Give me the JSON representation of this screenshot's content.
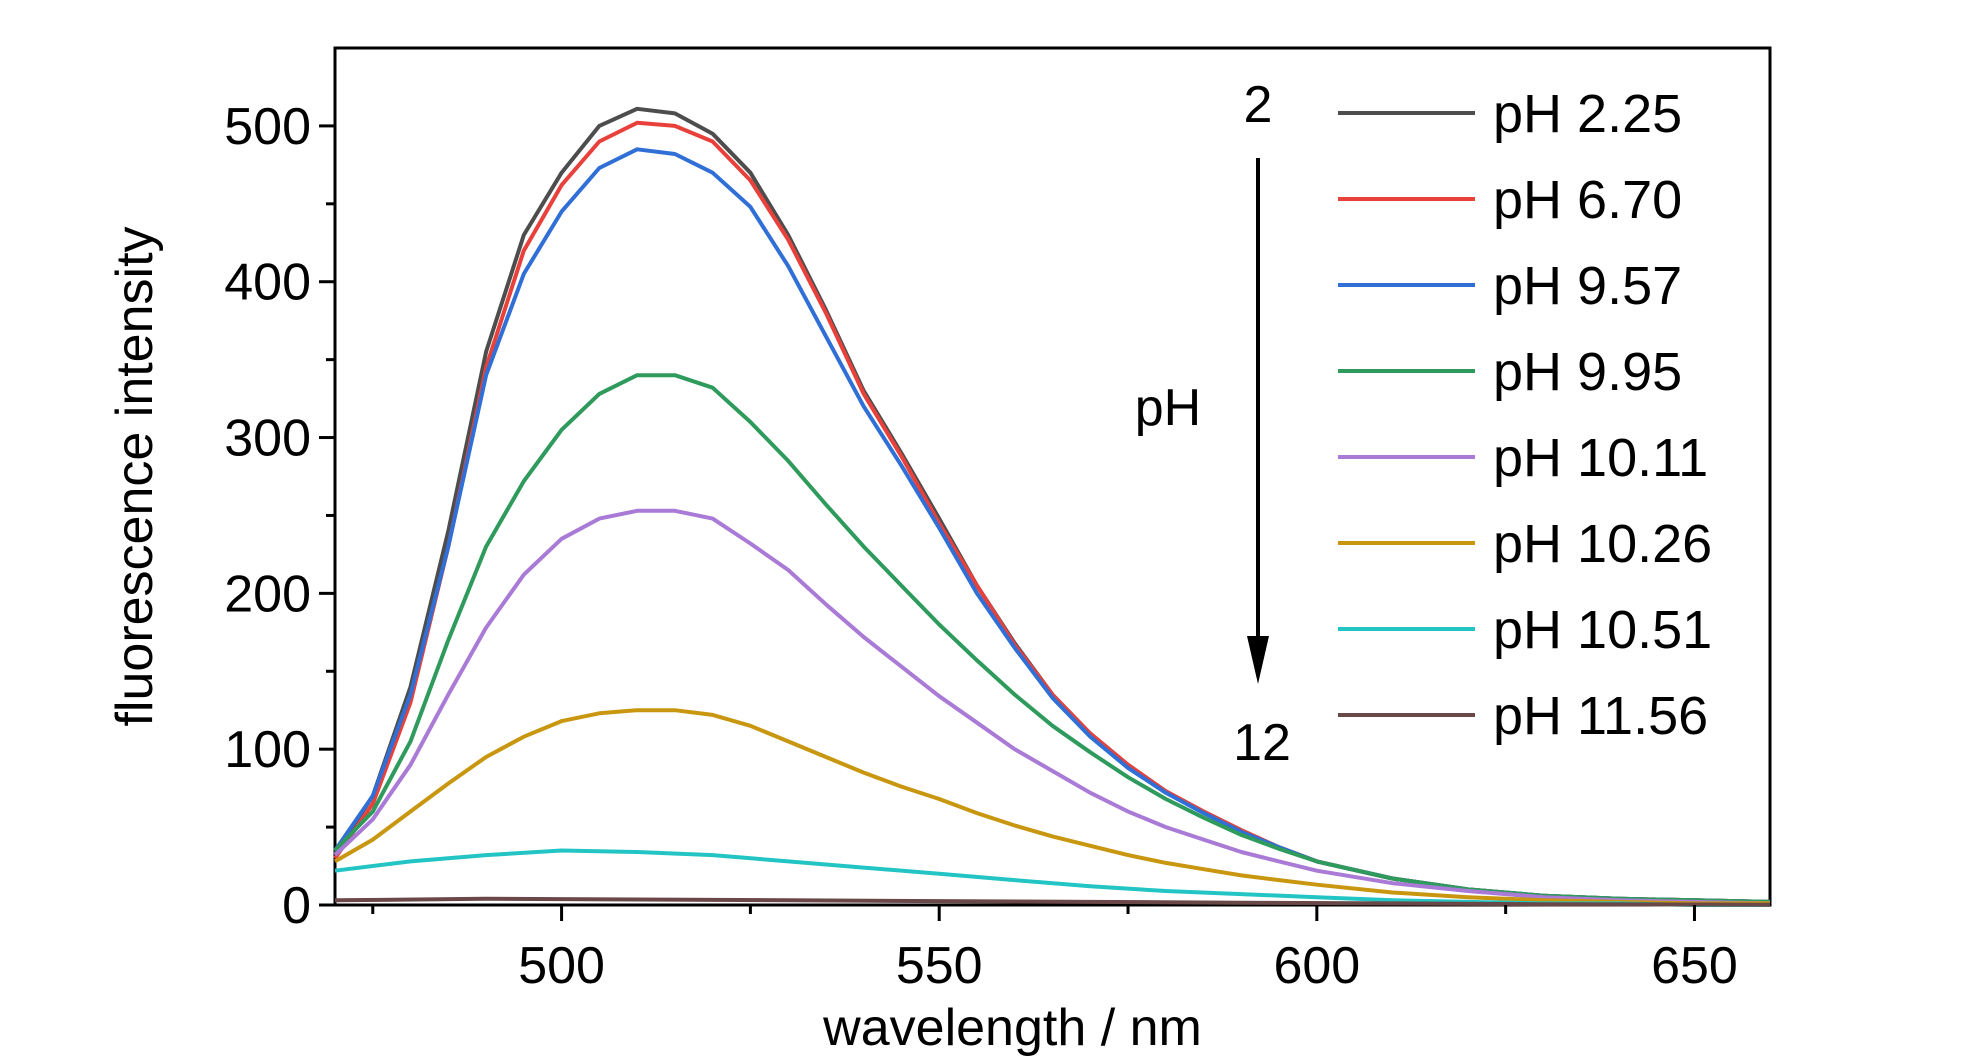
{
  "chart_data": {
    "type": "line",
    "title": "",
    "xlabel": "wavelength / nm",
    "ylabel": "fluorescence intensity",
    "xlim": [
      470,
      660
    ],
    "ylim": [
      0,
      550
    ],
    "xticks": [
      500,
      550,
      600,
      650
    ],
    "yticks": [
      0,
      100,
      200,
      300,
      400,
      500
    ],
    "x_tick_labels": [
      "500",
      "550",
      "600",
      "650"
    ],
    "y_tick_labels": [
      "0",
      "100",
      "200",
      "300",
      "400",
      "500"
    ],
    "grid": false,
    "legend_position": "top-right",
    "annotations": {
      "start": "2",
      "label": "pH",
      "end": "12"
    },
    "series": [
      {
        "name": "pH 2.25",
        "color": "#4d4d4d",
        "points": [
          [
            470,
            33
          ],
          [
            475,
            70
          ],
          [
            480,
            140
          ],
          [
            485,
            240
          ],
          [
            490,
            355
          ],
          [
            495,
            430
          ],
          [
            500,
            470
          ],
          [
            505,
            500
          ],
          [
            510,
            511
          ],
          [
            515,
            508
          ],
          [
            520,
            495
          ],
          [
            525,
            470
          ],
          [
            530,
            430
          ],
          [
            535,
            382
          ],
          [
            540,
            330
          ],
          [
            545,
            290
          ],
          [
            550,
            248
          ],
          [
            555,
            205
          ],
          [
            560,
            168
          ],
          [
            565,
            135
          ],
          [
            570,
            110
          ],
          [
            575,
            90
          ],
          [
            580,
            73
          ],
          [
            585,
            60
          ],
          [
            590,
            48
          ],
          [
            595,
            37
          ],
          [
            600,
            28
          ],
          [
            610,
            17
          ],
          [
            620,
            10
          ],
          [
            630,
            6
          ],
          [
            640,
            4
          ],
          [
            650,
            3
          ],
          [
            660,
            2
          ]
        ]
      },
      {
        "name": "pH 6.70",
        "color": "#e8413c",
        "points": [
          [
            470,
            30
          ],
          [
            475,
            65
          ],
          [
            480,
            130
          ],
          [
            485,
            230
          ],
          [
            490,
            345
          ],
          [
            495,
            420
          ],
          [
            500,
            462
          ],
          [
            505,
            490
          ],
          [
            510,
            502
          ],
          [
            515,
            500
          ],
          [
            520,
            490
          ],
          [
            525,
            465
          ],
          [
            530,
            427
          ],
          [
            535,
            380
          ],
          [
            540,
            328
          ],
          [
            545,
            288
          ],
          [
            550,
            245
          ],
          [
            555,
            205
          ],
          [
            560,
            167
          ],
          [
            565,
            135
          ],
          [
            570,
            110
          ],
          [
            575,
            90
          ],
          [
            580,
            73
          ],
          [
            585,
            60
          ],
          [
            590,
            48
          ],
          [
            595,
            37
          ],
          [
            600,
            28
          ],
          [
            610,
            17
          ],
          [
            620,
            10
          ],
          [
            630,
            6
          ],
          [
            640,
            4
          ],
          [
            650,
            3
          ],
          [
            660,
            2
          ]
        ]
      },
      {
        "name": "pH 9.57",
        "color": "#2f6fd6",
        "points": [
          [
            470,
            35
          ],
          [
            475,
            70
          ],
          [
            480,
            135
          ],
          [
            485,
            230
          ],
          [
            490,
            340
          ],
          [
            495,
            405
          ],
          [
            500,
            445
          ],
          [
            505,
            473
          ],
          [
            510,
            485
          ],
          [
            515,
            482
          ],
          [
            520,
            470
          ],
          [
            525,
            448
          ],
          [
            530,
            410
          ],
          [
            535,
            365
          ],
          [
            540,
            320
          ],
          [
            545,
            282
          ],
          [
            550,
            242
          ],
          [
            555,
            200
          ],
          [
            560,
            165
          ],
          [
            565,
            133
          ],
          [
            570,
            108
          ],
          [
            575,
            88
          ],
          [
            580,
            72
          ],
          [
            585,
            59
          ],
          [
            590,
            47
          ],
          [
            595,
            37
          ],
          [
            600,
            28
          ],
          [
            610,
            17
          ],
          [
            620,
            10
          ],
          [
            630,
            6
          ],
          [
            640,
            4
          ],
          [
            650,
            3
          ],
          [
            660,
            2
          ]
        ]
      },
      {
        "name": "pH 9.95",
        "color": "#2e9a5c",
        "points": [
          [
            470,
            35
          ],
          [
            475,
            60
          ],
          [
            480,
            105
          ],
          [
            485,
            170
          ],
          [
            490,
            230
          ],
          [
            495,
            272
          ],
          [
            500,
            305
          ],
          [
            505,
            328
          ],
          [
            510,
            340
          ],
          [
            515,
            340
          ],
          [
            520,
            332
          ],
          [
            525,
            310
          ],
          [
            530,
            285
          ],
          [
            535,
            257
          ],
          [
            540,
            230
          ],
          [
            545,
            205
          ],
          [
            550,
            180
          ],
          [
            555,
            157
          ],
          [
            560,
            135
          ],
          [
            565,
            115
          ],
          [
            570,
            98
          ],
          [
            575,
            82
          ],
          [
            580,
            68
          ],
          [
            585,
            56
          ],
          [
            590,
            45
          ],
          [
            595,
            36
          ],
          [
            600,
            28
          ],
          [
            610,
            17
          ],
          [
            620,
            10
          ],
          [
            630,
            6
          ],
          [
            640,
            4
          ],
          [
            650,
            3
          ],
          [
            660,
            2
          ]
        ]
      },
      {
        "name": "pH 10.11",
        "color": "#a97ad6",
        "points": [
          [
            470,
            32
          ],
          [
            475,
            55
          ],
          [
            480,
            90
          ],
          [
            485,
            135
          ],
          [
            490,
            178
          ],
          [
            495,
            212
          ],
          [
            500,
            235
          ],
          [
            505,
            248
          ],
          [
            510,
            253
          ],
          [
            515,
            253
          ],
          [
            520,
            248
          ],
          [
            525,
            232
          ],
          [
            530,
            215
          ],
          [
            535,
            193
          ],
          [
            540,
            172
          ],
          [
            545,
            153
          ],
          [
            550,
            134
          ],
          [
            555,
            117
          ],
          [
            560,
            100
          ],
          [
            565,
            86
          ],
          [
            570,
            72
          ],
          [
            575,
            60
          ],
          [
            580,
            50
          ],
          [
            585,
            42
          ],
          [
            590,
            34
          ],
          [
            595,
            28
          ],
          [
            600,
            22
          ],
          [
            610,
            14
          ],
          [
            620,
            9
          ],
          [
            630,
            5
          ],
          [
            640,
            3
          ],
          [
            650,
            2
          ],
          [
            660,
            1
          ]
        ]
      },
      {
        "name": "pH 10.26",
        "color": "#c8960f",
        "points": [
          [
            470,
            28
          ],
          [
            475,
            42
          ],
          [
            480,
            60
          ],
          [
            485,
            78
          ],
          [
            490,
            95
          ],
          [
            495,
            108
          ],
          [
            500,
            118
          ],
          [
            505,
            123
          ],
          [
            510,
            125
          ],
          [
            515,
            125
          ],
          [
            520,
            122
          ],
          [
            525,
            115
          ],
          [
            530,
            105
          ],
          [
            535,
            95
          ],
          [
            540,
            85
          ],
          [
            545,
            76
          ],
          [
            550,
            68
          ],
          [
            555,
            59
          ],
          [
            560,
            51
          ],
          [
            565,
            44
          ],
          [
            570,
            38
          ],
          [
            575,
            32
          ],
          [
            580,
            27
          ],
          [
            585,
            23
          ],
          [
            590,
            19
          ],
          [
            595,
            16
          ],
          [
            600,
            13
          ],
          [
            610,
            8
          ],
          [
            620,
            5
          ],
          [
            630,
            3
          ],
          [
            640,
            2
          ],
          [
            650,
            1
          ],
          [
            660,
            1
          ]
        ]
      },
      {
        "name": "pH 10.51",
        "color": "#22c4c4",
        "points": [
          [
            470,
            22
          ],
          [
            480,
            28
          ],
          [
            490,
            32
          ],
          [
            500,
            35
          ],
          [
            510,
            34
          ],
          [
            520,
            32
          ],
          [
            530,
            28
          ],
          [
            540,
            24
          ],
          [
            550,
            20
          ],
          [
            560,
            16
          ],
          [
            570,
            12
          ],
          [
            580,
            9
          ],
          [
            590,
            7
          ],
          [
            600,
            5
          ],
          [
            610,
            3
          ],
          [
            620,
            2
          ],
          [
            630,
            1
          ],
          [
            640,
            1
          ],
          [
            650,
            0
          ],
          [
            660,
            0
          ]
        ]
      },
      {
        "name": "pH 11.56",
        "color": "#6b4848",
        "points": [
          [
            470,
            3
          ],
          [
            490,
            4
          ],
          [
            510,
            3.5
          ],
          [
            530,
            3
          ],
          [
            550,
            2.5
          ],
          [
            570,
            2
          ],
          [
            590,
            1.5
          ],
          [
            610,
            1
          ],
          [
            630,
            0.5
          ],
          [
            650,
            0.3
          ],
          [
            660,
            0.2
          ]
        ]
      }
    ]
  }
}
